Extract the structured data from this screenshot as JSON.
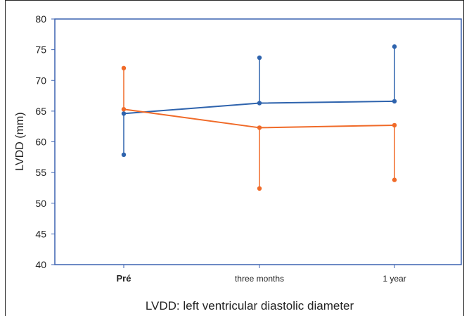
{
  "chart_data": {
    "type": "line",
    "ylabel": "LVDD (mm)",
    "caption": "LVDD: left ventricular diastolic diameter",
    "ylim": [
      40,
      80
    ],
    "yticks": [
      40,
      45,
      50,
      55,
      60,
      65,
      70,
      75,
      80
    ],
    "categories": [
      "Pré",
      "three months",
      "1 year"
    ],
    "series": [
      {
        "color": "#2e63ad",
        "values": [
          64.6,
          66.3,
          66.6
        ],
        "upper": [
          64.6,
          73.7,
          75.5
        ],
        "lower": [
          57.9,
          66.3,
          66.6
        ]
      },
      {
        "color": "#f06a28",
        "values": [
          65.3,
          62.3,
          62.7
        ],
        "upper": [
          72.0,
          62.3,
          62.7
        ],
        "lower": [
          65.3,
          52.4,
          53.8
        ]
      }
    ],
    "colors": {
      "axis_frame": "#3c62b0",
      "text": "#222222"
    }
  }
}
